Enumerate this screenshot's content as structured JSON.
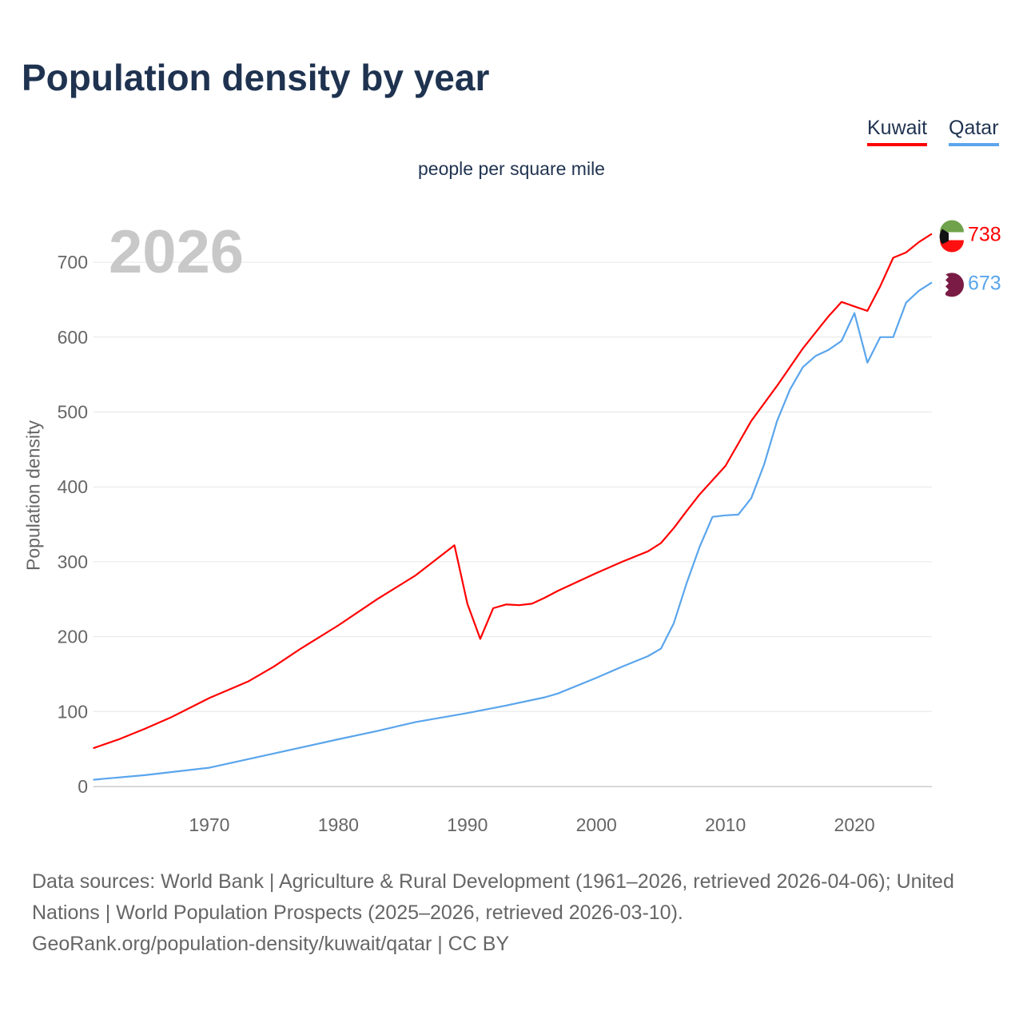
{
  "chart_data": {
    "type": "line",
    "title": "Population density by year",
    "subtitle": "people per square mile",
    "ylabel": "Population density",
    "xlabel": "",
    "current_year": "2026",
    "xlim": [
      1961,
      2026
    ],
    "ylim": [
      0,
      750
    ],
    "x_ticks": [
      1970,
      1980,
      1990,
      2000,
      2010,
      2020
    ],
    "y_ticks": [
      0,
      100,
      200,
      300,
      400,
      500,
      600,
      700
    ],
    "grid": true,
    "legend_placement": "top-right",
    "series": [
      {
        "name": "Kuwait",
        "color": "#ff0000",
        "end_label": "738",
        "x": [
          1961,
          1963,
          1965,
          1967,
          1970,
          1973,
          1975,
          1977,
          1980,
          1983,
          1986,
          1989,
          1990,
          1991,
          1992,
          1993,
          1994,
          1995,
          1996,
          1997,
          2000,
          2002,
          2004,
          2005,
          2006,
          2007,
          2008,
          2010,
          2012,
          2014,
          2016,
          2018,
          2019,
          2020,
          2021,
          2022,
          2023,
          2024,
          2025,
          2026
        ],
        "y": [
          51,
          63,
          77,
          92,
          118,
          140,
          160,
          183,
          215,
          250,
          282,
          322,
          244,
          197,
          238,
          243,
          242,
          244,
          252,
          261,
          285,
          300,
          314,
          325,
          345,
          368,
          390,
          428,
          488,
          535,
          585,
          628,
          647,
          641,
          635,
          668,
          706,
          713,
          727,
          738
        ]
      },
      {
        "name": "Qatar",
        "color": "#5aa5ec",
        "end_label": "673",
        "x": [
          1961,
          1965,
          1970,
          1975,
          1980,
          1983,
          1986,
          1990,
          1993,
          1996,
          1997,
          2000,
          2002,
          2004,
          2005,
          2006,
          2007,
          2008,
          2009,
          2010,
          2011,
          2012,
          2013,
          2014,
          2015,
          2016,
          2017,
          2018,
          2019,
          2020,
          2021,
          2022,
          2023,
          2024,
          2025,
          2026
        ],
        "y": [
          9,
          15,
          25,
          44,
          63,
          74,
          86,
          98,
          108,
          119,
          124,
          145,
          160,
          174,
          184,
          218,
          272,
          320,
          360,
          362,
          363,
          385,
          430,
          488,
          530,
          560,
          575,
          583,
          595,
          632,
          566,
          600,
          600,
          646,
          662,
          673
        ]
      }
    ]
  },
  "source_text": "Data sources: World Bank | Agriculture & Rural Development (1961–2026, retrieved 2026-04-06); United Nations | World Population Prospects (2025–2026, retrieved 2026-03-10).",
  "source_link": "GeoRank.org/population-density/kuwait/qatar | CC BY"
}
